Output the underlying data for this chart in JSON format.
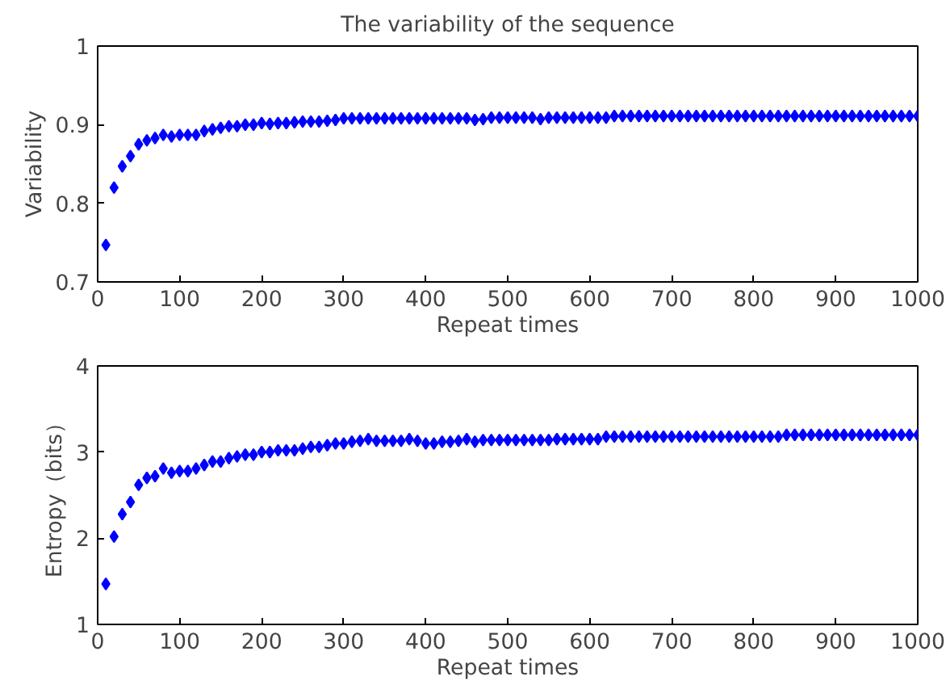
{
  "chart_data": [
    {
      "type": "scatter",
      "title": "The variability of the sequence",
      "xlabel": "Repeat times",
      "ylabel": "Variability",
      "marker": "diamond",
      "grid": false,
      "xlim": [
        0,
        1000
      ],
      "xticks": [
        0,
        100,
        200,
        300,
        400,
        500,
        600,
        700,
        800,
        900,
        1000
      ],
      "ylim": [
        0.7,
        1
      ],
      "yticks": [
        0.7,
        0.8,
        0.9,
        1
      ],
      "x": [
        10,
        20,
        30,
        40,
        50,
        60,
        70,
        80,
        90,
        100,
        110,
        120,
        130,
        140,
        150,
        160,
        170,
        180,
        190,
        200,
        210,
        220,
        230,
        240,
        250,
        260,
        270,
        280,
        290,
        300,
        310,
        320,
        330,
        340,
        350,
        360,
        370,
        380,
        390,
        400,
        410,
        420,
        430,
        440,
        450,
        460,
        470,
        480,
        490,
        500,
        510,
        520,
        530,
        540,
        550,
        560,
        570,
        580,
        590,
        600,
        610,
        620,
        630,
        640,
        650,
        660,
        670,
        680,
        690,
        700,
        710,
        720,
        730,
        740,
        750,
        760,
        770,
        780,
        790,
        800,
        810,
        820,
        830,
        840,
        850,
        860,
        870,
        880,
        890,
        900,
        910,
        920,
        930,
        940,
        950,
        960,
        970,
        980,
        990,
        1000
      ],
      "series": [
        {
          "color": "#0000ff",
          "values": [
            0.747,
            0.82,
            0.847,
            0.86,
            0.875,
            0.88,
            0.883,
            0.887,
            0.885,
            0.887,
            0.887,
            0.887,
            0.892,
            0.894,
            0.896,
            0.898,
            0.898,
            0.9,
            0.9,
            0.902,
            0.901,
            0.902,
            0.902,
            0.903,
            0.904,
            0.904,
            0.904,
            0.905,
            0.906,
            0.908,
            0.908,
            0.908,
            0.908,
            0.908,
            0.908,
            0.908,
            0.908,
            0.908,
            0.908,
            0.908,
            0.908,
            0.908,
            0.908,
            0.908,
            0.908,
            0.906,
            0.907,
            0.909,
            0.909,
            0.909,
            0.909,
            0.909,
            0.909,
            0.907,
            0.909,
            0.909,
            0.909,
            0.909,
            0.909,
            0.909,
            0.909,
            0.909,
            0.911,
            0.911,
            0.911,
            0.911,
            0.911,
            0.911,
            0.911,
            0.911,
            0.911,
            0.911,
            0.911,
            0.911,
            0.911,
            0.911,
            0.911,
            0.911,
            0.911,
            0.911,
            0.911,
            0.911,
            0.911,
            0.911,
            0.911,
            0.911,
            0.911,
            0.911,
            0.911,
            0.911,
            0.911,
            0.911,
            0.911,
            0.911,
            0.911,
            0.911,
            0.911,
            0.911,
            0.911,
            0.911
          ]
        }
      ]
    },
    {
      "type": "scatter",
      "xlabel": "Repeat times",
      "ylabel": "Entropy（bits）",
      "marker": "diamond",
      "grid": false,
      "xlim": [
        0,
        1000
      ],
      "xticks": [
        0,
        100,
        200,
        300,
        400,
        500,
        600,
        700,
        800,
        900,
        1000
      ],
      "ylim": [
        1,
        4
      ],
      "yticks": [
        1,
        2,
        3,
        4
      ],
      "x": [
        10,
        20,
        30,
        40,
        50,
        60,
        70,
        80,
        90,
        100,
        110,
        120,
        130,
        140,
        150,
        160,
        170,
        180,
        190,
        200,
        210,
        220,
        230,
        240,
        250,
        260,
        270,
        280,
        290,
        300,
        310,
        320,
        330,
        340,
        350,
        360,
        370,
        380,
        390,
        400,
        410,
        420,
        430,
        440,
        450,
        460,
        470,
        480,
        490,
        500,
        510,
        520,
        530,
        540,
        550,
        560,
        570,
        580,
        590,
        600,
        610,
        620,
        630,
        640,
        650,
        660,
        670,
        680,
        690,
        700,
        710,
        720,
        730,
        740,
        750,
        760,
        770,
        780,
        790,
        800,
        810,
        820,
        830,
        840,
        850,
        860,
        870,
        880,
        890,
        900,
        910,
        920,
        930,
        940,
        950,
        960,
        970,
        980,
        990,
        1000
      ],
      "series": [
        {
          "color": "#0000ff",
          "values": [
            1.47,
            2.02,
            2.28,
            2.42,
            2.62,
            2.7,
            2.72,
            2.81,
            2.76,
            2.78,
            2.78,
            2.81,
            2.85,
            2.89,
            2.89,
            2.93,
            2.95,
            2.97,
            2.97,
            3.0,
            3.0,
            3.02,
            3.02,
            3.02,
            3.04,
            3.06,
            3.06,
            3.08,
            3.1,
            3.1,
            3.12,
            3.13,
            3.15,
            3.13,
            3.13,
            3.13,
            3.13,
            3.15,
            3.13,
            3.1,
            3.1,
            3.12,
            3.12,
            3.13,
            3.15,
            3.12,
            3.14,
            3.14,
            3.14,
            3.14,
            3.14,
            3.14,
            3.14,
            3.14,
            3.14,
            3.15,
            3.15,
            3.15,
            3.15,
            3.15,
            3.15,
            3.18,
            3.18,
            3.18,
            3.18,
            3.18,
            3.18,
            3.18,
            3.18,
            3.18,
            3.18,
            3.18,
            3.18,
            3.18,
            3.18,
            3.18,
            3.18,
            3.18,
            3.18,
            3.18,
            3.18,
            3.18,
            3.18,
            3.2,
            3.2,
            3.2,
            3.2,
            3.2,
            3.2,
            3.2,
            3.2,
            3.2,
            3.2,
            3.2,
            3.2,
            3.2,
            3.2,
            3.2,
            3.2,
            3.2
          ]
        }
      ]
    }
  ]
}
